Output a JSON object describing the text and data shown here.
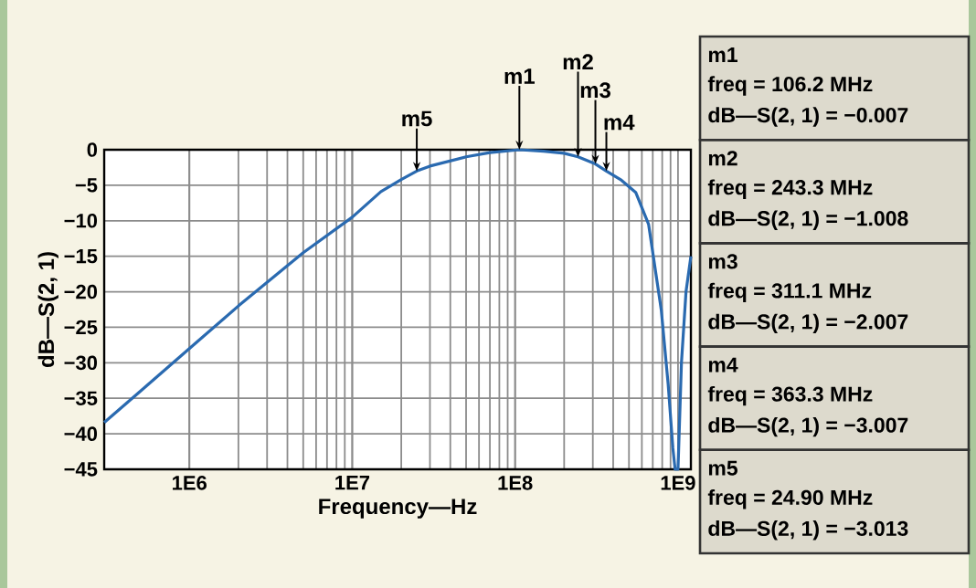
{
  "chart_data": {
    "type": "line",
    "xlabel": "Frequency—Hz",
    "ylabel": "dB—S(2, 1)",
    "log": "x",
    "grid": true,
    "xlim": [
      300000,
      1200000000
    ],
    "ylim": [
      -45,
      0
    ],
    "xticks": [
      {
        "value": 1000000,
        "label": "1E6"
      },
      {
        "value": 10000000,
        "label": "1E7"
      },
      {
        "value": 100000000,
        "label": "1E8"
      },
      {
        "value": 1000000000,
        "label": "1E9"
      }
    ],
    "yticks": [
      0,
      {
        "value": -5,
        "label": "−5"
      },
      {
        "value": -10,
        "label": "−10"
      },
      {
        "value": -15,
        "label": "−15"
      },
      {
        "value": -20,
        "label": "−20"
      },
      {
        "value": -25,
        "label": "−25"
      },
      {
        "value": -30,
        "label": "−30"
      },
      {
        "value": -35,
        "label": "−35"
      },
      {
        "value": -40,
        "label": "−40"
      },
      {
        "value": -45,
        "label": "−45"
      }
    ],
    "series": [
      {
        "color": "#2a6ab0",
        "x": [
          300000,
          500000,
          1000000,
          2000000,
          5000000,
          10000000,
          15000000,
          20000000,
          24900000,
          30000000,
          50000000,
          70000000,
          106200000,
          150000000,
          200000000,
          243300000,
          311100000,
          363300000,
          450000000,
          550000000,
          660000000,
          790000000,
          870000000,
          930000000,
          960000000,
          1000000000,
          1050000000,
          1120000000,
          1200000000
        ],
        "values": [
          -38.4,
          -34,
          -28,
          -22,
          -14.5,
          -9.5,
          -5.9,
          -4.2,
          -3,
          -2.3,
          -1.0,
          -0.4,
          0,
          -0.2,
          -0.5,
          -1,
          -2,
          -3,
          -4.3,
          -6,
          -10.5,
          -22.6,
          -33,
          -42,
          -45,
          -45,
          -30,
          -20,
          -15
        ]
      }
    ],
    "annotations": [
      {
        "text": "m1",
        "x": 106200000,
        "y": -0.007
      },
      {
        "text": "m2",
        "x": 243300000,
        "y": -1.008
      },
      {
        "text": "m3",
        "x": 311100000,
        "y": -2.007
      },
      {
        "text": "m4",
        "x": 363300000,
        "y": -3.007
      },
      {
        "text": "m5",
        "x": 24900000,
        "y": -3.013
      },
      "m1",
      "freq = 106.2 MHz",
      "dB—S(2, 1) = −0.007",
      "m2",
      "freq = 243.3 MHz",
      "dB—S(2, 1) = −1.008",
      "m3",
      "freq = 311.1 MHz",
      "dB—S(2, 1) = −2.007",
      "m4",
      "freq = 363.3 MHz",
      "dB—S(2, 1) = −3.007",
      "m5",
      "freq = 24.90 MHz",
      "dB—S(2, 1) = −3.013"
    ]
  }
}
